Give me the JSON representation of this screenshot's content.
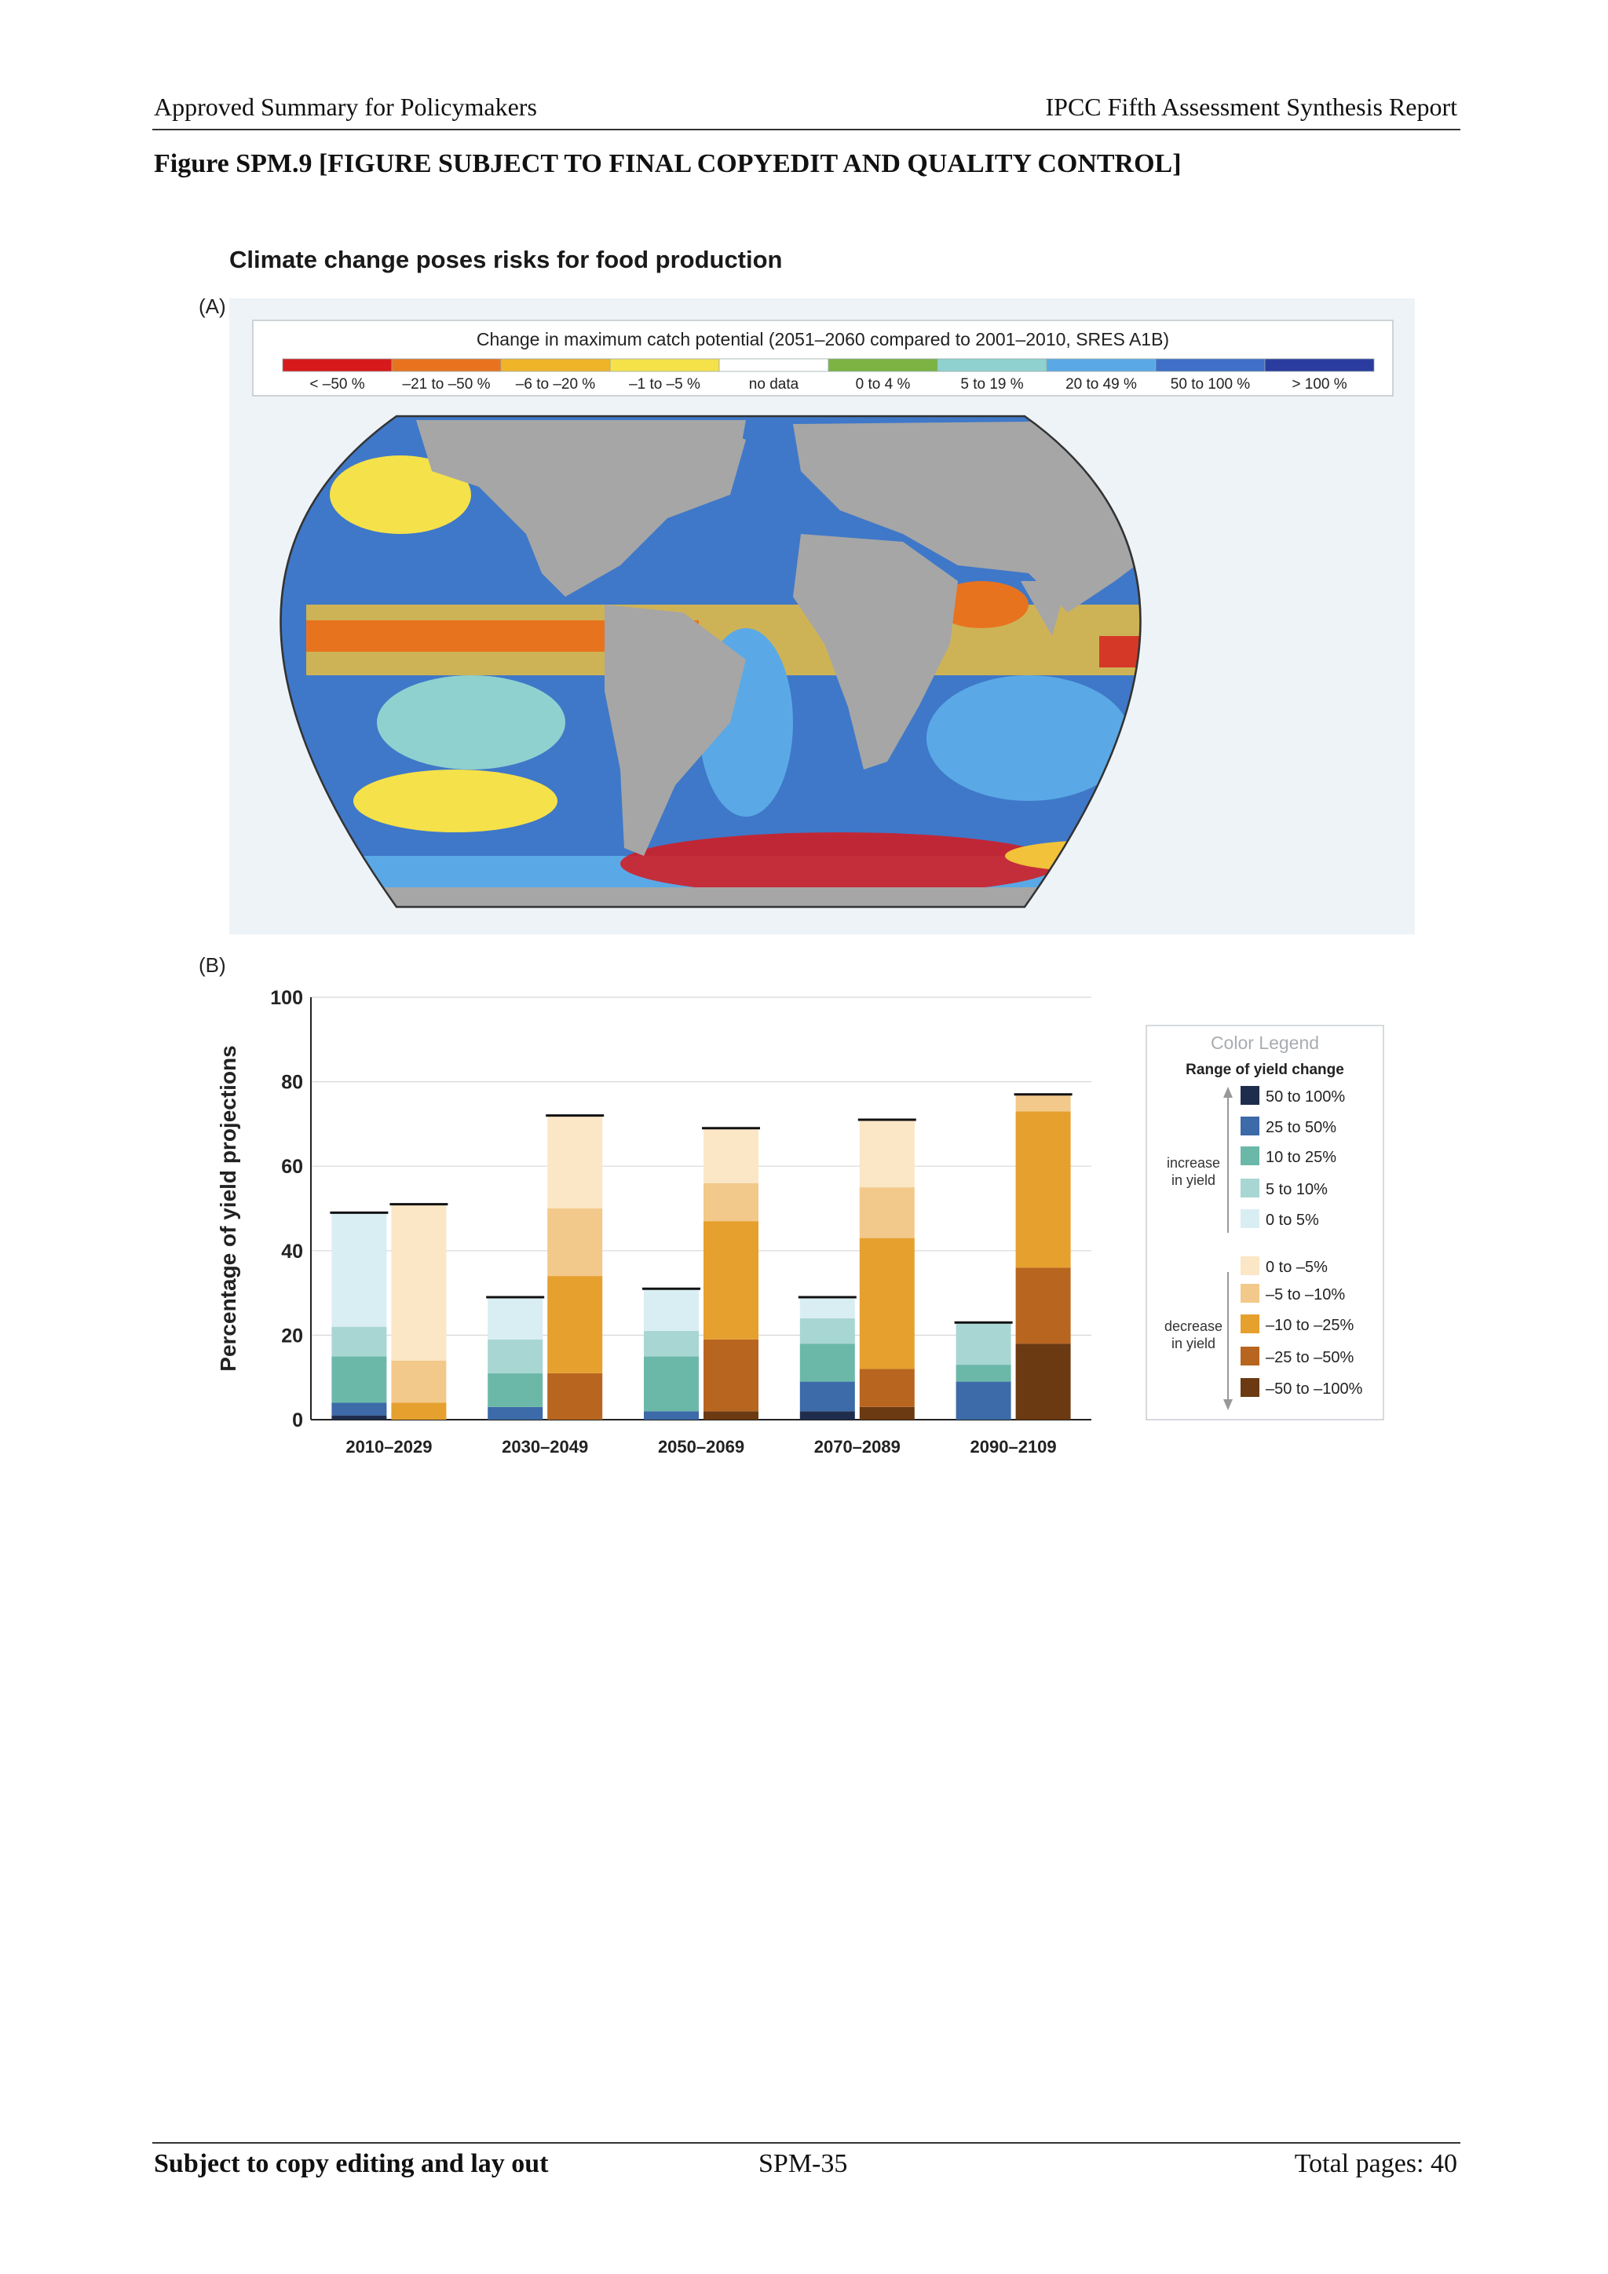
{
  "header": {
    "left": "Approved Summary for Policymakers",
    "right": "IPCC Fifth Assessment Synthesis Report"
  },
  "figure_label": "Figure SPM.9 [FIGURE SUBJECT TO FINAL COPYEDIT AND QUALITY CONTROL]",
  "figure_title": "Climate change poses risks for food production",
  "panel_a": {
    "label": "(A)",
    "legend_title": "Change in maximum catch potential (2051–2060 compared to 2001–2010, SRES A1B)",
    "legend_items": [
      {
        "label": "< –50 %",
        "color": "#d7191c"
      },
      {
        "label": "–21 to –50 %",
        "color": "#e8731f"
      },
      {
        "label": "–6 to –20 %",
        "color": "#f0b429"
      },
      {
        "label": "–1 to –5 %",
        "color": "#f5e14a"
      },
      {
        "label": "no data",
        "color": "#ffffff"
      },
      {
        "label": "0 to 4 %",
        "color": "#7cb342"
      },
      {
        "label": "5 to 19 %",
        "color": "#8fd1cf"
      },
      {
        "label": "20 to 49 %",
        "color": "#5aa9e6"
      },
      {
        "label": "50 to 100 %",
        "color": "#3f6fc6"
      },
      {
        "label": "> 100 %",
        "color": "#2a3c9e"
      }
    ]
  },
  "panel_b": {
    "label": "(B)",
    "legend_heading": "Color Legend",
    "legend_subheading": "Range of yield change",
    "increase_label": [
      "increase",
      "in yield"
    ],
    "decrease_label": [
      "decrease",
      "in yield"
    ]
  },
  "chart_data": {
    "type": "bar",
    "stacked": true,
    "ylabel": "Percentage of yield projections",
    "ylim": [
      0,
      100
    ],
    "yticks": [
      0,
      20,
      40,
      60,
      80,
      100
    ],
    "categories": [
      "2010–2029",
      "2030–2049",
      "2050–2069",
      "2070–2089",
      "2090–2109"
    ],
    "groups": [
      "increase in yield",
      "decrease in yield"
    ],
    "increase_series": [
      {
        "name": "50 to 100%",
        "color": "#1f2d4d",
        "values": [
          1,
          0,
          0,
          2,
          0
        ]
      },
      {
        "name": "25 to 50%",
        "color": "#3d6aa8",
        "values": [
          3,
          3,
          2,
          7,
          9
        ]
      },
      {
        "name": "10 to 25%",
        "color": "#6bb8a9",
        "values": [
          11,
          8,
          13,
          9,
          4
        ]
      },
      {
        "name": "5 to 10%",
        "color": "#a8d6d3",
        "values": [
          7,
          8,
          6,
          6,
          10
        ]
      },
      {
        "name": "0 to 5%",
        "color": "#d9eef3",
        "values": [
          27,
          10,
          10,
          5,
          0
        ]
      }
    ],
    "decrease_series": [
      {
        "name": "–50 to –100%",
        "color": "#6b3a12",
        "values": [
          0,
          0,
          2,
          3,
          18
        ]
      },
      {
        "name": "–25 to –50%",
        "color": "#b8651f",
        "values": [
          0,
          11,
          17,
          9,
          18
        ]
      },
      {
        "name": "–10 to –25%",
        "color": "#e6a02e",
        "values": [
          4,
          23,
          28,
          31,
          37
        ]
      },
      {
        "name": "–5 to –10%",
        "color": "#f2c98a",
        "values": [
          10,
          16,
          9,
          12,
          4
        ]
      },
      {
        "name": "0 to –5%",
        "color": "#fbe6c6",
        "values": [
          37,
          22,
          13,
          16,
          0
        ]
      }
    ],
    "increase_totals": [
      49,
      29,
      31,
      29,
      23
    ],
    "decrease_totals": [
      51,
      72,
      69,
      71,
      77
    ]
  },
  "footer": {
    "left": "Subject to copy editing and lay out",
    "center": "SPM-35",
    "right": "Total pages: 40"
  }
}
